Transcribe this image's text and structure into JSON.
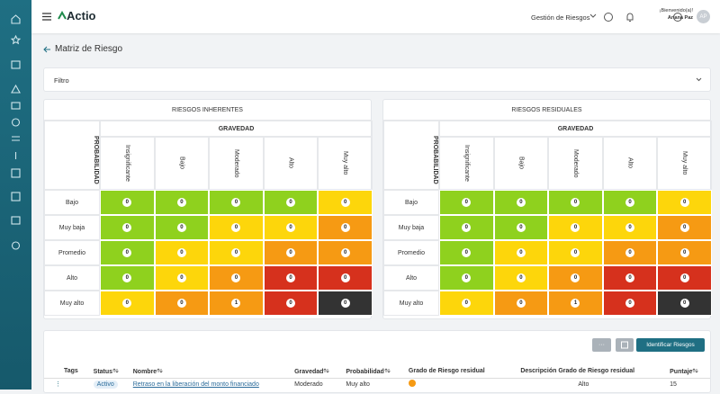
{
  "topbar": {
    "brand": "Actio",
    "module": "Gestión de Riesgos",
    "greeting": "¡Bienvenido(a)!",
    "user": "Ariana Paz",
    "initials": "AP"
  },
  "page": {
    "title": "Matriz de Riesgo",
    "filter": "Filtro"
  },
  "matrices": [
    {
      "title": "RIESGOS INHERENTES",
      "column_group": "GRAVEDAD",
      "row_group": "PROBABILIDAD",
      "columns": [
        "Insignificante",
        "Bajo",
        "Moderado",
        "Alto",
        "Muy alto"
      ],
      "rows": [
        "Bajo",
        "Muy baja",
        "Promedio",
        "Alto",
        "Muy alto"
      ],
      "values": [
        [
          0,
          0,
          0,
          0,
          0
        ],
        [
          0,
          0,
          0,
          0,
          0
        ],
        [
          0,
          0,
          0,
          0,
          0
        ],
        [
          0,
          0,
          0,
          0,
          0
        ],
        [
          0,
          0,
          1,
          0,
          0
        ]
      ],
      "colors": [
        [
          "#8fd11e",
          "#8fd11e",
          "#8fd11e",
          "#8fd11e",
          "#fdd60b"
        ],
        [
          "#8fd11e",
          "#8fd11e",
          "#fdd60b",
          "#fdd60b",
          "#f69a13"
        ],
        [
          "#8fd11e",
          "#fdd60b",
          "#fdd60b",
          "#f69a13",
          "#f69a13"
        ],
        [
          "#8fd11e",
          "#fdd60b",
          "#f69a13",
          "#d6311d",
          "#d6311d"
        ],
        [
          "#fdd60b",
          "#f69a13",
          "#f69a13",
          "#d6311d",
          "#333333"
        ]
      ]
    },
    {
      "title": "RIESGOS RESIDUALES",
      "column_group": "GRAVEDAD",
      "row_group": "PROBABILIDAD",
      "columns": [
        "Insignificante",
        "Bajo",
        "Moderado",
        "Alto",
        "Muy alto"
      ],
      "rows": [
        "Bajo",
        "Muy baja",
        "Promedio",
        "Alto",
        "Muy alto"
      ],
      "values": [
        [
          0,
          0,
          0,
          0,
          0
        ],
        [
          0,
          0,
          0,
          0,
          0
        ],
        [
          0,
          0,
          0,
          0,
          0
        ],
        [
          0,
          0,
          0,
          0,
          0
        ],
        [
          0,
          0,
          1,
          0,
          0
        ]
      ],
      "colors": [
        [
          "#8fd11e",
          "#8fd11e",
          "#8fd11e",
          "#8fd11e",
          "#fdd60b"
        ],
        [
          "#8fd11e",
          "#8fd11e",
          "#fdd60b",
          "#fdd60b",
          "#f69a13"
        ],
        [
          "#8fd11e",
          "#fdd60b",
          "#fdd60b",
          "#f69a13",
          "#f69a13"
        ],
        [
          "#8fd11e",
          "#fdd60b",
          "#f69a13",
          "#d6311d",
          "#d6311d"
        ],
        [
          "#fdd60b",
          "#f69a13",
          "#f69a13",
          "#d6311d",
          "#333333"
        ]
      ]
    }
  ],
  "table": {
    "more": "···",
    "identify": "Identificar Riesgos",
    "headers": [
      "Tags",
      "Status",
      "Nombre",
      "Gravedad",
      "Probabilidad",
      "Grado de Riesgo residual",
      "Descripción Grado de Riesgo residual",
      "Puntaje"
    ],
    "row": {
      "status": "Activo",
      "name": "Retraso en la liberación del monto financiado",
      "severity": "Moderado",
      "probability": "Muy alto",
      "grade_color": "#f69a13",
      "description": "Alto",
      "score": 15
    }
  }
}
